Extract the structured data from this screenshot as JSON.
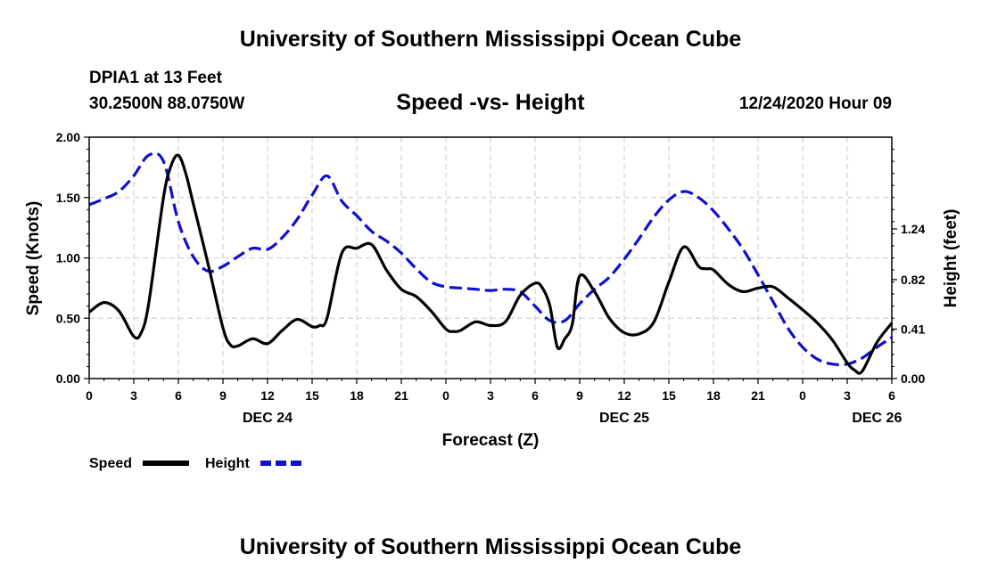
{
  "header": {
    "top_title": "University of Southern Mississippi Ocean Cube",
    "station": "DPIA1 at 13 Feet",
    "coords": "30.2500N 88.0750W",
    "chart_title": "Speed -vs- Height",
    "datetime": "12/24/2020 Hour 09"
  },
  "footer": {
    "bottom_title": "University of Southern Mississippi Ocean Cube"
  },
  "chart_data": {
    "type": "line",
    "title": "Speed -vs- Height",
    "xlabel": "Forecast (Z)",
    "ylabel_left": "Speed (Knots)",
    "ylabel_right": "Height (feet)",
    "x_range_hours": [
      0,
      54
    ],
    "x_ticks": [
      {
        "h": 0,
        "label": "0"
      },
      {
        "h": 3,
        "label": "3"
      },
      {
        "h": 6,
        "label": "6"
      },
      {
        "h": 9,
        "label": "9"
      },
      {
        "h": 12,
        "label": "12"
      },
      {
        "h": 15,
        "label": "15"
      },
      {
        "h": 18,
        "label": "18"
      },
      {
        "h": 21,
        "label": "21"
      },
      {
        "h": 24,
        "label": "0"
      },
      {
        "h": 27,
        "label": "3"
      },
      {
        "h": 30,
        "label": "6"
      },
      {
        "h": 33,
        "label": "9"
      },
      {
        "h": 36,
        "label": "12"
      },
      {
        "h": 39,
        "label": "15"
      },
      {
        "h": 42,
        "label": "18"
      },
      {
        "h": 45,
        "label": "21"
      },
      {
        "h": 48,
        "label": "0"
      },
      {
        "h": 51,
        "label": "3"
      },
      {
        "h": 54,
        "label": "6"
      }
    ],
    "day_labels": [
      {
        "h": 12,
        "label": "DEC 24"
      },
      {
        "h": 36,
        "label": "DEC 25"
      },
      {
        "h": 53,
        "label": "DEC 26"
      }
    ],
    "left_axis": {
      "range": [
        0,
        2
      ],
      "ticks": [
        "0.00",
        "0.50",
        "1.00",
        "1.50",
        "2.00"
      ],
      "tick_values": [
        0,
        0.5,
        1,
        1.5,
        2
      ]
    },
    "right_axis": {
      "range": [
        0,
        2.0
      ],
      "ticks": [
        "0.00",
        "0.41",
        "0.82",
        "1.24"
      ],
      "tick_values": [
        0,
        0.41,
        0.82,
        1.24
      ]
    },
    "grid": true,
    "series": [
      {
        "name": "Speed",
        "axis": "left",
        "color": "#000000",
        "style": "solid",
        "x": [
          0,
          1,
          2,
          3,
          3.5,
          4,
          5,
          5.5,
          6,
          6.5,
          7,
          8,
          9,
          9.5,
          10,
          11,
          12,
          13,
          14,
          15,
          15.5,
          16,
          17,
          18,
          19,
          20,
          21,
          22,
          23,
          24,
          24.5,
          25,
          26,
          27,
          28,
          29,
          30,
          30.5,
          31,
          31.5,
          32,
          32.5,
          33,
          34,
          35,
          36,
          37,
          38,
          39,
          40,
          41,
          41.5,
          42,
          43,
          44,
          45,
          46,
          47,
          48,
          49,
          50,
          51,
          51.5,
          52,
          53,
          54
        ],
        "values": [
          0.55,
          0.63,
          0.56,
          0.35,
          0.38,
          0.62,
          1.5,
          1.76,
          1.85,
          1.7,
          1.45,
          0.95,
          0.42,
          0.28,
          0.27,
          0.33,
          0.29,
          0.4,
          0.49,
          0.43,
          0.44,
          0.5,
          1.04,
          1.08,
          1.11,
          0.9,
          0.74,
          0.68,
          0.56,
          0.41,
          0.39,
          0.4,
          0.47,
          0.44,
          0.47,
          0.69,
          0.79,
          0.75,
          0.6,
          0.26,
          0.33,
          0.45,
          0.85,
          0.72,
          0.5,
          0.38,
          0.37,
          0.47,
          0.8,
          1.09,
          0.93,
          0.91,
          0.9,
          0.78,
          0.72,
          0.75,
          0.76,
          0.67,
          0.57,
          0.46,
          0.32,
          0.13,
          0.07,
          0.06,
          0.3,
          0.46
        ]
      },
      {
        "name": "Height",
        "axis": "right",
        "color": "#1010cc",
        "style": "dashed",
        "x": [
          0,
          1,
          2,
          3,
          4,
          5,
          6,
          7,
          8,
          9,
          10,
          11,
          12,
          13,
          14,
          15,
          16,
          17,
          18,
          19,
          20,
          21,
          22,
          23,
          24,
          25,
          26,
          27,
          28,
          29,
          30,
          31,
          32,
          33,
          34,
          35,
          36,
          37,
          38,
          39,
          40,
          41,
          42,
          43,
          44,
          45,
          46,
          47,
          48,
          49,
          50,
          51,
          52,
          53,
          54
        ],
        "values": [
          1.44,
          1.49,
          1.55,
          1.68,
          1.85,
          1.8,
          1.3,
          1.01,
          0.89,
          0.93,
          1.01,
          1.08,
          1.07,
          1.17,
          1.32,
          1.52,
          1.68,
          1.47,
          1.35,
          1.22,
          1.14,
          1.04,
          0.91,
          0.8,
          0.76,
          0.75,
          0.74,
          0.73,
          0.74,
          0.72,
          0.6,
          0.48,
          0.48,
          0.62,
          0.74,
          0.84,
          0.99,
          1.16,
          1.34,
          1.48,
          1.55,
          1.5,
          1.39,
          1.24,
          1.07,
          0.86,
          0.64,
          0.42,
          0.26,
          0.16,
          0.12,
          0.12,
          0.17,
          0.26,
          0.34
        ]
      }
    ],
    "legend": [
      {
        "label": "Speed",
        "color": "#000000",
        "style": "solid"
      },
      {
        "label": "Height",
        "color": "#1010cc",
        "style": "dashed"
      }
    ]
  }
}
